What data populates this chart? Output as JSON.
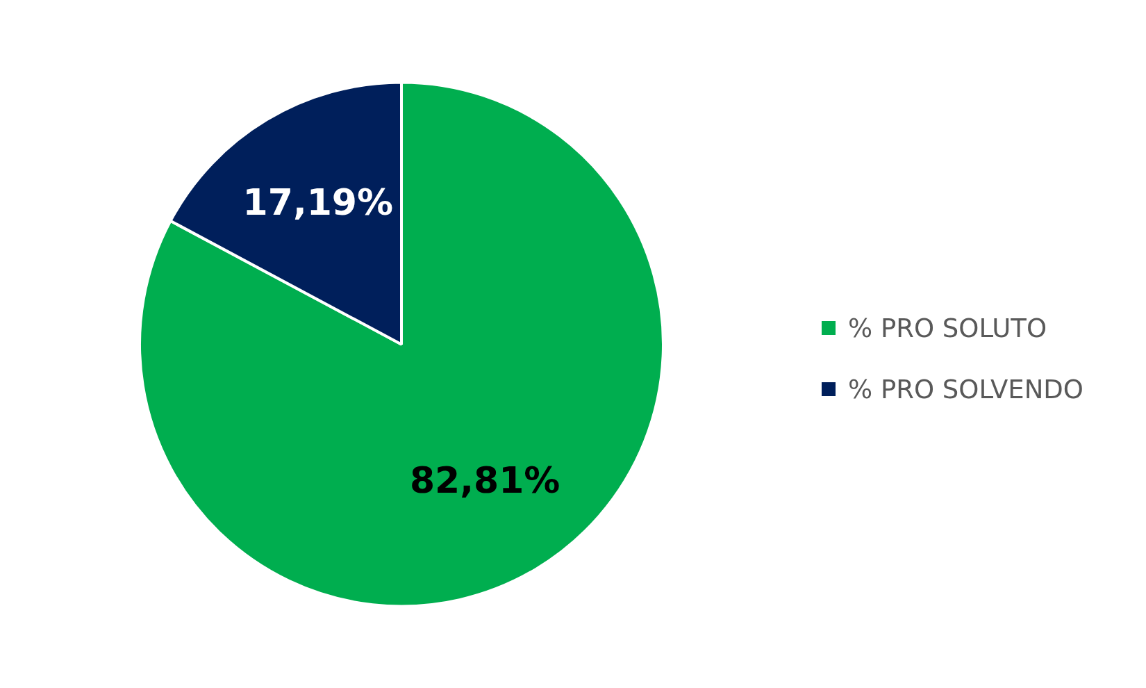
{
  "chart_data": {
    "type": "pie",
    "categories": [
      "% PRO SOLUTO",
      "% PRO SOLVENDO"
    ],
    "values": [
      82.81,
      17.19
    ],
    "colors": [
      "#00ae4f",
      "#001f5b"
    ],
    "value_labels": [
      "82,81%",
      "17,19%"
    ],
    "legend": "right"
  }
}
